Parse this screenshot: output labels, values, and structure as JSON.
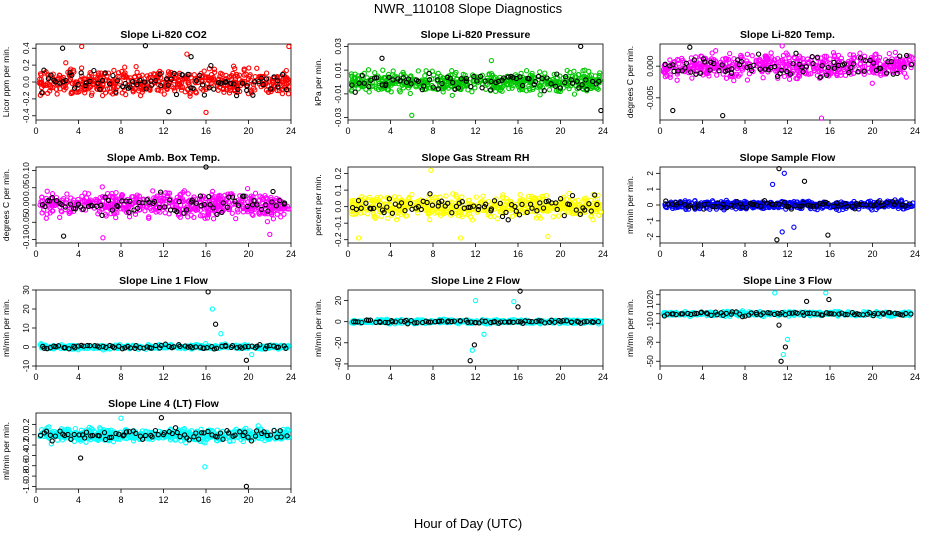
{
  "figure": {
    "title": "NWR_110108  Slope Diagnostics",
    "xlabel": "Hour of Day (UTC)"
  },
  "chart_data": [
    {
      "type": "scatter",
      "title": "Slope Li-820 CO2",
      "ylabel": "Licor ppm per min.",
      "xlim": [
        0,
        24
      ],
      "ylim": [
        -0.45,
        0.45
      ],
      "xticks": [
        "0",
        "4",
        "8",
        "12",
        "16",
        "20",
        "24"
      ],
      "yticks": [
        "-0.4",
        "-0.2",
        "0.0",
        "0.2",
        "0.4"
      ],
      "point_color": "#ff0000",
      "point_count": 520,
      "spread": 0.17,
      "black_points": 80,
      "outliers": [
        [
          2.5,
          0.4
        ],
        [
          4.3,
          0.42
        ],
        [
          10.3,
          0.43
        ],
        [
          14.2,
          0.33
        ],
        [
          14.6,
          0.3
        ],
        [
          23.8,
          0.42
        ],
        [
          12.5,
          -0.35
        ],
        [
          16.0,
          -0.36
        ]
      ]
    },
    {
      "type": "scatter",
      "title": "Slope Li-820 Pressure",
      "ylabel": "kPa per min.",
      "xlim": [
        0,
        24
      ],
      "ylim": [
        -0.032,
        0.032
      ],
      "xticks": [
        "0",
        "4",
        "8",
        "12",
        "16",
        "20",
        "24"
      ],
      "yticks": [
        "-0.03",
        "-0.01",
        "0.01",
        "0.03"
      ],
      "point_color": "#00c800",
      "point_count": 520,
      "spread": 0.009,
      "black_points": 80,
      "outliers": [
        [
          21.9,
          0.03
        ],
        [
          6.0,
          -0.028
        ],
        [
          3.2,
          0.02
        ],
        [
          13.5,
          0.018
        ],
        [
          23.8,
          -0.024
        ]
      ]
    },
    {
      "type": "scatter",
      "title": "Slope Li-820 Temp.",
      "ylabel": "degrees C per min.",
      "xlim": [
        0,
        24
      ],
      "ylim": [
        -0.0085,
        0.0035
      ],
      "xticks": [
        "0",
        "4",
        "8",
        "12",
        "16",
        "20",
        "24"
      ],
      "yticks": [
        "-0.005",
        "0.000"
      ],
      "point_color": "#ff00ff",
      "point_count": 520,
      "spread": 0.0022,
      "black_points": 80,
      "outliers": [
        [
          2.8,
          0.003
        ],
        [
          11.5,
          0.0032
        ],
        [
          5.9,
          -0.0078
        ],
        [
          15.2,
          -0.0082
        ],
        [
          1.2,
          -0.007
        ]
      ]
    },
    {
      "type": "scatter",
      "title": "Slope Amb. Box Temp.",
      "ylabel": "degrees C per min.",
      "xlim": [
        0,
        24
      ],
      "ylim": [
        -0.11,
        0.11
      ],
      "xticks": [
        "0",
        "4",
        "8",
        "12",
        "16",
        "20",
        "24"
      ],
      "yticks": [
        "-0.10",
        "-0.05",
        "0.00",
        "0.05",
        "0.10"
      ],
      "point_color": "#ff00ff",
      "point_count": 520,
      "spread": 0.04,
      "black_points": 80,
      "outliers": [
        [
          16.0,
          0.11
        ],
        [
          6.3,
          -0.095
        ],
        [
          2.6,
          -0.09
        ],
        [
          22.0,
          -0.085
        ]
      ]
    },
    {
      "type": "scatter",
      "title": "Slope Gas Stream RH",
      "ylabel": "percent per min.",
      "xlim": [
        0,
        24
      ],
      "ylim": [
        -0.22,
        0.24
      ],
      "xticks": [
        "0",
        "4",
        "8",
        "12",
        "16",
        "20",
        "24"
      ],
      "yticks": [
        "-0.2",
        "-0.1",
        "0.0",
        "0.1",
        "0.2"
      ],
      "point_color": "#ffff00",
      "point_count": 520,
      "spread": 0.07,
      "black_points": 80,
      "outliers": [
        [
          7.8,
          0.22
        ],
        [
          1.0,
          -0.19
        ],
        [
          10.6,
          -0.19
        ],
        [
          18.8,
          -0.18
        ]
      ]
    },
    {
      "type": "scatter",
      "title": "Slope Sample Flow",
      "ylabel": "ml/min per min.",
      "xlim": [
        0,
        24
      ],
      "ylim": [
        -2.4,
        2.4
      ],
      "xticks": [
        "0",
        "4",
        "8",
        "12",
        "16",
        "20",
        "24"
      ],
      "yticks": [
        "-2",
        "-1",
        "0",
        "1",
        "2"
      ],
      "point_color": "#0000ff",
      "point_count": 520,
      "spread": 0.28,
      "black_points": 80,
      "outliers": [
        [
          11.2,
          2.3
        ],
        [
          11.7,
          2.0
        ],
        [
          11.0,
          -2.2
        ],
        [
          11.5,
          -1.7
        ],
        [
          15.8,
          -1.9
        ],
        [
          12.6,
          -1.4
        ],
        [
          13.6,
          1.5
        ],
        [
          10.6,
          1.3
        ]
      ]
    },
    {
      "type": "scatter",
      "title": "Slope Line 1 Flow",
      "ylabel": "ml/min per min.",
      "xlim": [
        0,
        24
      ],
      "ylim": [
        -10,
        30
      ],
      "xticks": [
        "0",
        "4",
        "8",
        "12",
        "16",
        "20",
        "24"
      ],
      "yticks": [
        "-10",
        "0",
        "10",
        "20",
        "30"
      ],
      "point_color": "#00ffff",
      "point_count": 420,
      "spread": 1.3,
      "black_points": 80,
      "outliers": [
        [
          16.2,
          29
        ],
        [
          16.6,
          20
        ],
        [
          16.9,
          12
        ],
        [
          17.4,
          7
        ],
        [
          19.8,
          -7
        ],
        [
          20.3,
          -4
        ]
      ]
    },
    {
      "type": "scatter",
      "title": "Slope Line 2 Flow",
      "ylabel": "ml/min per min.",
      "xlim": [
        0,
        24
      ],
      "ylim": [
        -42,
        30
      ],
      "xticks": [
        "0",
        "4",
        "8",
        "12",
        "16",
        "20",
        "24"
      ],
      "yticks": [
        "-40",
        "-20",
        "0",
        "20"
      ],
      "point_color": "#00ffff",
      "point_count": 420,
      "spread": 2.0,
      "black_points": 80,
      "outliers": [
        [
          11.5,
          -37
        ],
        [
          11.7,
          -27
        ],
        [
          11.9,
          -22
        ],
        [
          12.8,
          -12
        ],
        [
          16.2,
          29
        ],
        [
          15.6,
          19
        ],
        [
          16.0,
          14
        ],
        [
          12.0,
          20
        ]
      ]
    },
    {
      "type": "scatter",
      "title": "Slope Line 3 Flow",
      "ylabel": "ml/min per min.",
      "xlim": [
        0,
        24
      ],
      "ylim": [
        -55,
        25
      ],
      "xticks": [
        "0",
        "4",
        "8",
        "12",
        "16",
        "20",
        "24"
      ],
      "yticks": [
        "-50",
        "-30",
        "-10",
        "0",
        "10",
        "20"
      ],
      "point_color": "#00ffff",
      "point_count": 420,
      "spread": 2.5,
      "black_points": 80,
      "outliers": [
        [
          11.4,
          -50
        ],
        [
          11.6,
          -43
        ],
        [
          11.8,
          -35
        ],
        [
          12.0,
          -27
        ],
        [
          11.2,
          -12
        ],
        [
          15.6,
          22
        ],
        [
          15.9,
          15
        ],
        [
          10.8,
          22
        ],
        [
          13.8,
          13
        ]
      ]
    },
    {
      "type": "scatter",
      "title": "Slope Line 4 (LT) Flow",
      "ylabel": "ml/min per min.",
      "xlim": [
        0,
        24
      ],
      "ylim": [
        -1.05,
        0.42
      ],
      "xticks": [
        "0",
        "4",
        "8",
        "12",
        "16",
        "20",
        "24"
      ],
      "yticks": [
        "-1.0",
        "-0.8",
        "-0.6",
        "-0.4",
        "-0.2",
        "0.0",
        "0.2"
      ],
      "point_color": "#00ffff",
      "point_count": 520,
      "spread": 0.14,
      "black_points": 80,
      "outliers": [
        [
          19.8,
          -1.0
        ],
        [
          15.9,
          -0.62
        ],
        [
          4.2,
          -0.45
        ],
        [
          8.0,
          0.32
        ],
        [
          11.8,
          0.33
        ]
      ]
    }
  ]
}
